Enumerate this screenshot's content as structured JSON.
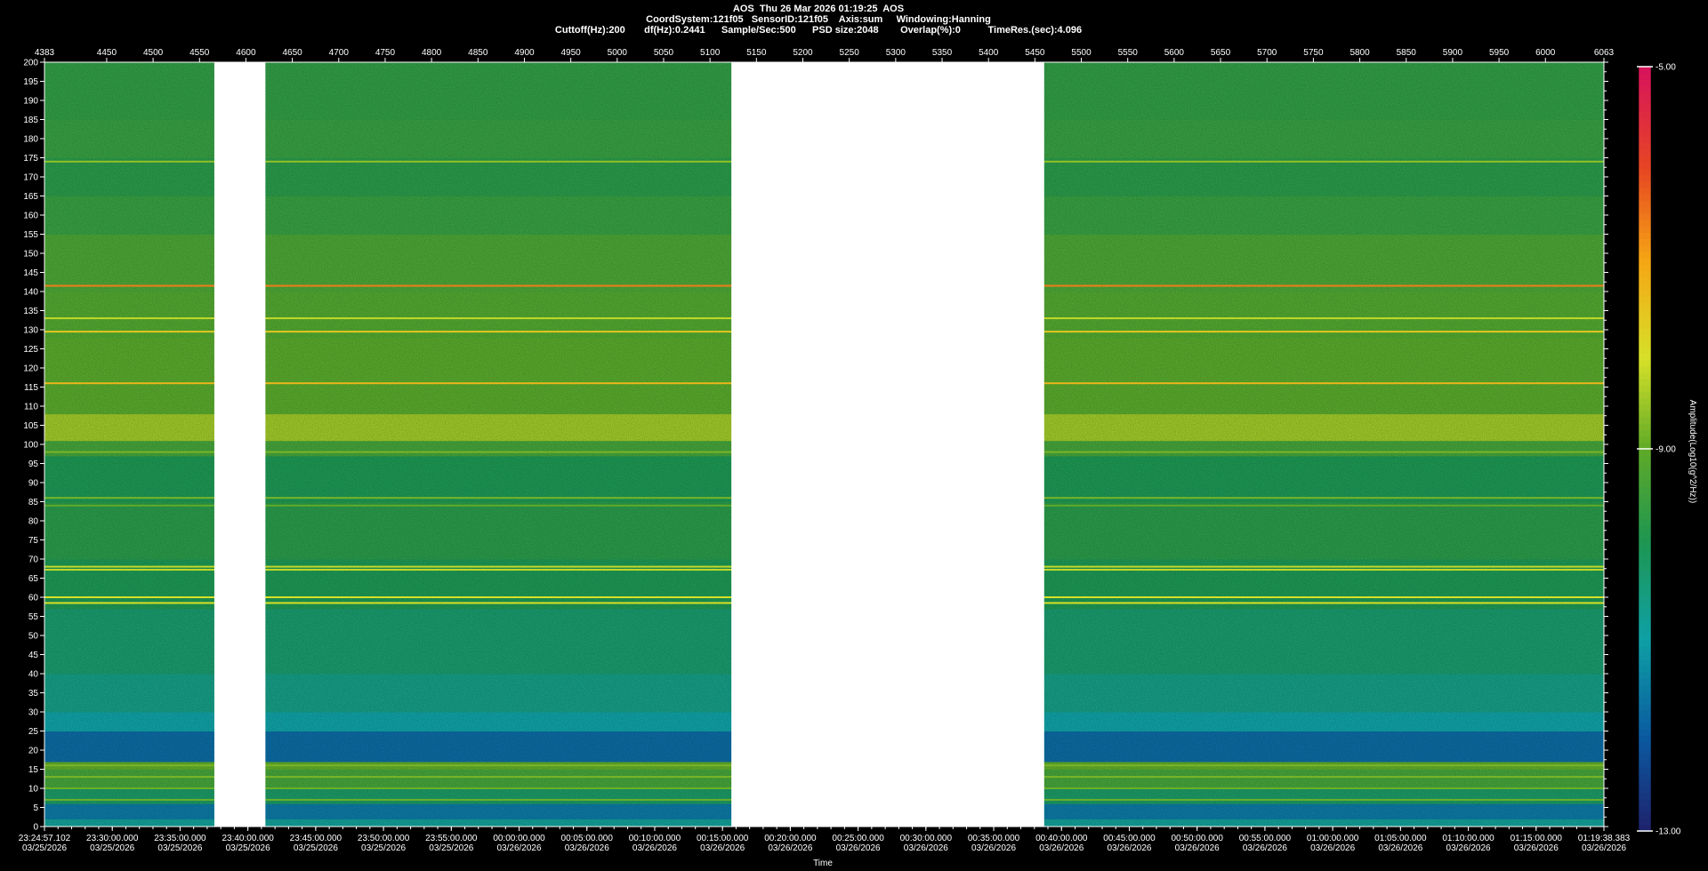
{
  "header": {
    "line1": "AOS  Thu 26 Mar 2026 01:19:25  AOS",
    "line2": "CoordSystem:121f05   SensorID:121f05    Axis:sum     Windowing:Hanning",
    "line3": "Cuttoff(Hz):200       df(Hz):0.2441      Sample/Sec:500      PSD size:2048        Overlap(%):0          TimeRes.(sec):4.096"
  },
  "chart_data": {
    "type": "heatmap",
    "title": "AOS  Thu 26 Mar 2026 01:19:25  AOS",
    "xlabel": "Time",
    "ylabel": "",
    "colorbar_label": "Amplitude(Log10(g^2/Hz))",
    "top_axis": {
      "range": [
        4383,
        6063
      ],
      "ticks": [
        "4383",
        "4450",
        "4500",
        "4550",
        "4600",
        "4650",
        "4700",
        "4750",
        "4800",
        "4850",
        "4900",
        "4950",
        "5000",
        "5050",
        "5100",
        "5150",
        "5200",
        "5250",
        "5300",
        "5350",
        "5400",
        "5450",
        "5500",
        "5550",
        "5600",
        "5650",
        "5700",
        "5750",
        "5800",
        "5850",
        "5900",
        "5950",
        "6000",
        "6063"
      ]
    },
    "bottom_axis": {
      "ticks": [
        {
          "time": "23:24:57.102",
          "date": "03/25/2026"
        },
        {
          "time": "23:30:00.000",
          "date": "03/25/2026"
        },
        {
          "time": "23:35:00.000",
          "date": "03/25/2026"
        },
        {
          "time": "23:40:00.000",
          "date": "03/25/2026"
        },
        {
          "time": "23:45:00.000",
          "date": "03/25/2026"
        },
        {
          "time": "23:50:00.000",
          "date": "03/25/2026"
        },
        {
          "time": "23:55:00.000",
          "date": "03/25/2026"
        },
        {
          "time": "00:00:00.000",
          "date": "03/26/2026"
        },
        {
          "time": "00:05:00.000",
          "date": "03/26/2026"
        },
        {
          "time": "00:10:00.000",
          "date": "03/26/2026"
        },
        {
          "time": "00:15:00.000",
          "date": "03/26/2026"
        },
        {
          "time": "00:20:00.000",
          "date": "03/26/2026"
        },
        {
          "time": "00:25:00.000",
          "date": "03/26/2026"
        },
        {
          "time": "00:30:00.000",
          "date": "03/26/2026"
        },
        {
          "time": "00:35:00.000",
          "date": "03/26/2026"
        },
        {
          "time": "00:40:00.000",
          "date": "03/26/2026"
        },
        {
          "time": "00:45:00.000",
          "date": "03/26/2026"
        },
        {
          "time": "00:50:00.000",
          "date": "03/26/2026"
        },
        {
          "time": "00:55:00.000",
          "date": "03/26/2026"
        },
        {
          "time": "01:00:00.000",
          "date": "03/26/2026"
        },
        {
          "time": "01:05:00.000",
          "date": "03/26/2026"
        },
        {
          "time": "01:10:00.000",
          "date": "03/26/2026"
        },
        {
          "time": "01:15:00.000",
          "date": "03/26/2026"
        },
        {
          "time": "01:19:38.383",
          "date": "03/26/2026"
        }
      ]
    },
    "y_axis": {
      "range": [
        0,
        200
      ],
      "ticks": [
        0,
        5,
        10,
        15,
        20,
        25,
        30,
        35,
        40,
        45,
        50,
        55,
        60,
        65,
        70,
        75,
        80,
        85,
        90,
        95,
        100,
        105,
        110,
        115,
        120,
        125,
        130,
        135,
        140,
        145,
        150,
        155,
        160,
        165,
        170,
        175,
        180,
        185,
        190,
        195,
        200
      ]
    },
    "colorbar": {
      "range": [
        -13,
        -5
      ],
      "tick_labels": [
        "-5.00",
        "-9.00",
        "-13.00"
      ]
    },
    "data_gaps_index": [
      [
        4566,
        4621
      ],
      [
        5123,
        5460
      ]
    ],
    "tonal_lines_hz": [
      {
        "hz": 174,
        "level": -8.6
      },
      {
        "hz": 141.5,
        "level": -6.6
      },
      {
        "hz": 133,
        "level": -8.2
      },
      {
        "hz": 129.5,
        "level": -7.6
      },
      {
        "hz": 116,
        "level": -7.3
      },
      {
        "hz": 98,
        "level": -8.8
      },
      {
        "hz": 86,
        "level": -8.8
      },
      {
        "hz": 84,
        "level": -9.0
      },
      {
        "hz": 68,
        "level": -8.2
      },
      {
        "hz": 67.2,
        "level": -8.2
      },
      {
        "hz": 60,
        "level": -8.0
      },
      {
        "hz": 58.5,
        "level": -8.0
      },
      {
        "hz": 16,
        "level": -8.8
      },
      {
        "hz": 13,
        "level": -8.8
      },
      {
        "hz": 10,
        "level": -8.9
      },
      {
        "hz": 7,
        "level": -8.9
      }
    ],
    "background_bands_hz": [
      {
        "from": 0,
        "to": 2,
        "level": -10.8
      },
      {
        "from": 2,
        "to": 6,
        "level": -11.6
      },
      {
        "from": 6,
        "to": 10,
        "level": -10.2
      },
      {
        "from": 10,
        "to": 15,
        "level": -9.4
      },
      {
        "from": 15,
        "to": 17,
        "level": -9.0
      },
      {
        "from": 17,
        "to": 25,
        "level": -11.8
      },
      {
        "from": 25,
        "to": 30,
        "level": -11.0
      },
      {
        "from": 30,
        "to": 40,
        "level": -10.6
      },
      {
        "from": 40,
        "to": 57,
        "level": -10.3
      },
      {
        "from": 57,
        "to": 70,
        "level": -10.0
      },
      {
        "from": 70,
        "to": 85,
        "level": -9.8
      },
      {
        "from": 85,
        "to": 97,
        "level": -10.0
      },
      {
        "from": 97,
        "to": 101,
        "level": -9.4
      },
      {
        "from": 101,
        "to": 108,
        "level": -8.5
      },
      {
        "from": 108,
        "to": 128,
        "level": -9.1
      },
      {
        "from": 128,
        "to": 140,
        "level": -9.2
      },
      {
        "from": 140,
        "to": 155,
        "level": -9.3
      },
      {
        "from": 155,
        "to": 165,
        "level": -9.6
      },
      {
        "from": 165,
        "to": 175,
        "level": -9.8
      },
      {
        "from": 175,
        "to": 185,
        "level": -9.6
      },
      {
        "from": 185,
        "to": 200,
        "level": -9.7
      }
    ]
  }
}
